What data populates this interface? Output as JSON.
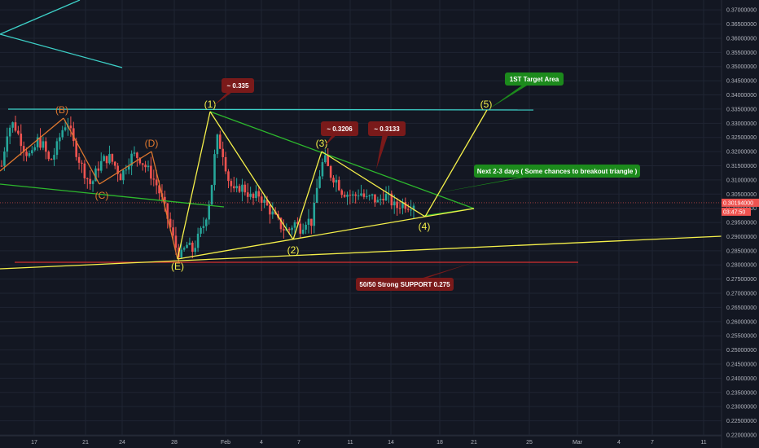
{
  "colors": {
    "background": "#131722",
    "grid": "#1f2433",
    "axis_text": "#b2b5be",
    "up_candle": "#26a69a",
    "down_candle": "#ef5350",
    "yellow_lines": "#f5f04a",
    "green_lines": "#2db82d",
    "cyan_lines": "#3dd1c8",
    "red_support": "#d32f2f",
    "orange_wave": "#e0782e",
    "red_callout": "#7a1a1a",
    "green_callout": "#1c8a1c",
    "price_badge": "#ef5350"
  },
  "chart_data": {
    "type": "candlestick",
    "instrument_note": "",
    "ylim": [
      0.2197,
      0.3735
    ],
    "y_ticks": [
      "0.37000000",
      "0.36500000",
      "0.36000000",
      "0.35500000",
      "0.35000000",
      "0.34500000",
      "0.34000000",
      "0.33500000",
      "0.33000000",
      "0.32500000",
      "0.32000000",
      "0.31500000",
      "0.31000000",
      "0.30500000",
      "0.30000000",
      "0.29500000",
      "0.29000000",
      "0.28500000",
      "0.28000000",
      "0.27500000",
      "0.27000000",
      "0.26500000",
      "0.26000000",
      "0.25500000",
      "0.25000000",
      "0.24500000",
      "0.24000000",
      "0.23500000",
      "0.23000000",
      "0.22500000",
      "0.22000000"
    ],
    "x_ticks": [
      "17",
      "21",
      "24",
      "28",
      "Feb",
      "4",
      "7",
      "11",
      "14",
      "18",
      "21",
      "25",
      "Mar",
      "4",
      "7",
      "11"
    ],
    "current_price_label": "0.30194000",
    "secondary_badge_label": "03:47:50",
    "wave_labels": [
      "(B)",
      "(C)",
      "(D)",
      "(E)",
      "(1)",
      "(2)",
      "(3)",
      "(4)",
      "(5)"
    ],
    "annotations": [
      {
        "text": "~ 0.335",
        "style": "red"
      },
      {
        "text": "~ 0.3206",
        "style": "red"
      },
      {
        "text": "~ 0.3133",
        "style": "red"
      },
      {
        "text": "1ST Target Area",
        "style": "green"
      },
      {
        "text": "Next 2-3 days  ( Some chances to breakout triangle )",
        "style": "green"
      },
      {
        "text": "50/50 Strong SUPPORT 0.275",
        "style": "red"
      }
    ],
    "price_path_knots": [
      [
        0.315,
        0.328,
        0.33,
        0.325,
        0.32,
        0.318,
        0.324,
        0.322,
        0.316,
        0.32,
        0.327,
        0.331,
        0.323,
        0.317,
        0.312,
        0.308,
        0.314,
        0.317,
        0.318,
        0.315,
        0.311,
        0.316,
        0.319,
        0.318,
        0.315,
        0.312,
        0.308,
        0.302,
        0.295,
        0.287,
        0.283,
        0.287,
        0.285,
        0.29,
        0.295,
        0.305,
        0.325,
        0.32,
        0.31,
        0.305,
        0.308,
        0.306,
        0.303,
        0.305,
        0.302,
        0.299,
        0.296,
        0.293,
        0.292,
        0.295,
        0.293,
        0.296,
        0.295,
        0.31,
        0.318,
        0.312,
        0.31,
        0.306,
        0.305,
        0.304,
        0.306,
        0.303,
        0.304,
        0.302,
        0.305,
        0.303,
        0.3,
        0.302,
        0.301,
        0.3019
      ]
    ]
  }
}
